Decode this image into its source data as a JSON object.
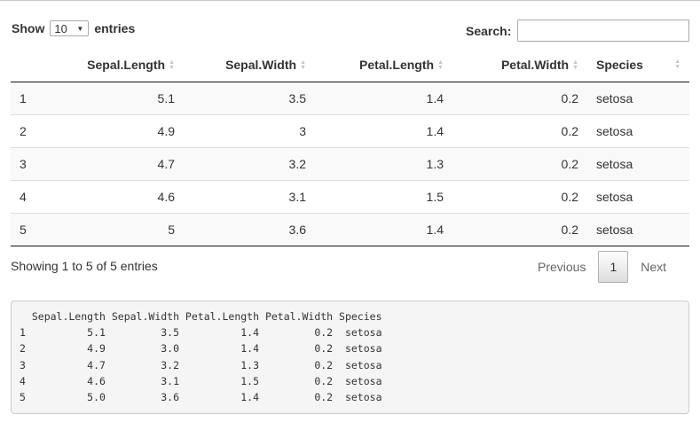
{
  "length_menu": {
    "show_label": "Show",
    "selected": "10",
    "entries_label": "entries"
  },
  "search": {
    "label": "Search:",
    "value": ""
  },
  "table": {
    "columns": [
      {
        "label": ""
      },
      {
        "label": "Sepal.Length"
      },
      {
        "label": "Sepal.Width"
      },
      {
        "label": "Petal.Length"
      },
      {
        "label": "Petal.Width"
      },
      {
        "label": "Species"
      }
    ],
    "rows": [
      [
        "1",
        "5.1",
        "3.5",
        "1.4",
        "0.2",
        "setosa"
      ],
      [
        "2",
        "4.9",
        "3",
        "1.4",
        "0.2",
        "setosa"
      ],
      [
        "3",
        "4.7",
        "3.2",
        "1.3",
        "0.2",
        "setosa"
      ],
      [
        "4",
        "4.6",
        "3.1",
        "1.5",
        "0.2",
        "setosa"
      ],
      [
        "5",
        "5",
        "3.6",
        "1.4",
        "0.2",
        "setosa"
      ]
    ]
  },
  "info": "Showing 1 to 5 of 5 entries",
  "pagination": {
    "previous": "Previous",
    "current_page": "1",
    "next": "Next"
  },
  "console_output": "  Sepal.Length Sepal.Width Petal.Length Petal.Width Species\n1          5.1         3.5          1.4         0.2  setosa\n2          4.9         3.0          1.4         0.2  setosa\n3          4.7         3.2          1.3         0.2  setosa\n4          4.6         3.1          1.5         0.2  setosa\n5          5.0         3.6          1.4         0.2  setosa",
  "icons": {
    "sort": "sort-both-icon",
    "dropdown": "caret-down-icon"
  }
}
